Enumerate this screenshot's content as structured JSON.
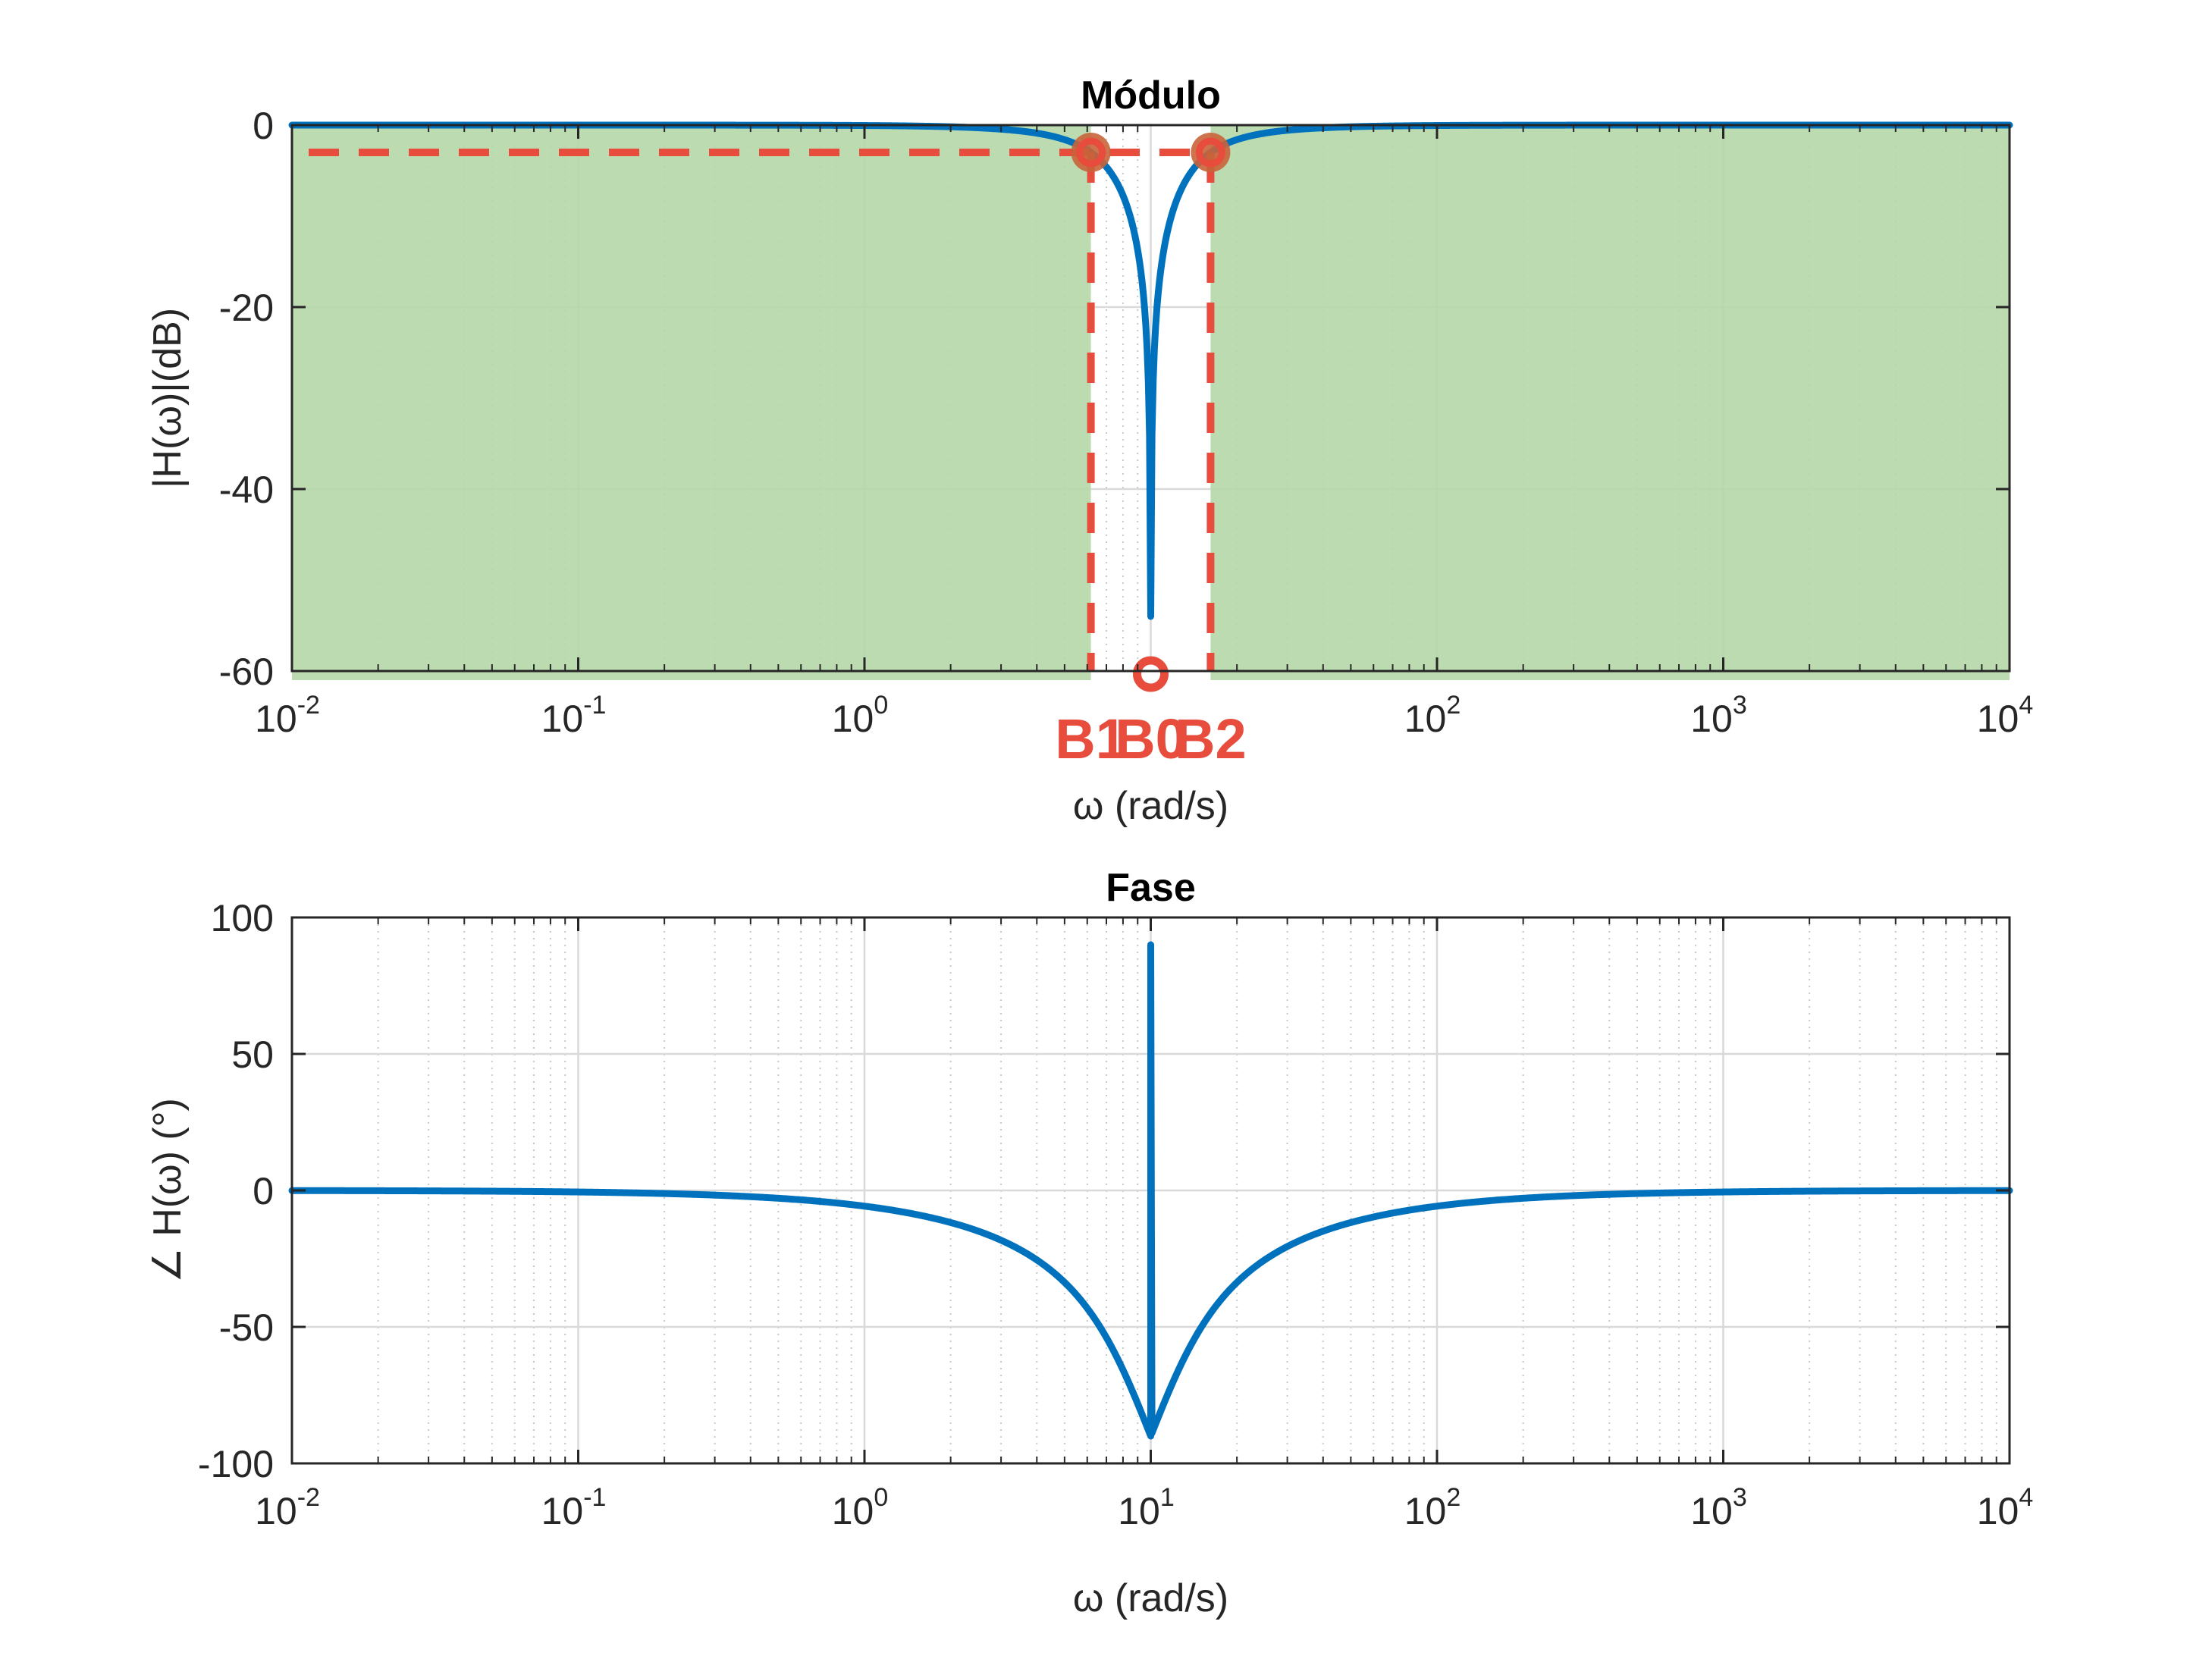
{
  "chart_data": [
    {
      "type": "line",
      "title": "Módulo",
      "xlabel": "ω (rad/s)",
      "ylabel": "|H(ω)|(dB)",
      "xscale": "log",
      "xlim": [
        0.01,
        10000
      ],
      "ylim": [
        -60,
        0
      ],
      "xticks": [
        {
          "value": 0.01,
          "base": "10",
          "exp": "-2"
        },
        {
          "value": 0.1,
          "base": "10",
          "exp": "-1"
        },
        {
          "value": 1,
          "base": "10",
          "exp": "0"
        },
        {
          "value": 100,
          "base": "10",
          "exp": "2"
        },
        {
          "value": 1000,
          "base": "10",
          "exp": "3"
        },
        {
          "value": 10000,
          "base": "10",
          "exp": "4"
        }
      ],
      "yticks": [
        {
          "value": 0,
          "label": "0"
        },
        {
          "value": -20,
          "label": "-20"
        },
        {
          "value": -40,
          "label": "-40"
        },
        {
          "value": -60,
          "label": "-60"
        }
      ],
      "grid": true,
      "series": [
        {
          "color": "#0072bd",
          "type": "notch",
          "center": 10,
          "bandwidth": 10,
          "floor": -54
        }
      ],
      "highlight": {
        "color": "#b6d7a8",
        "passband_low": [
          0.01,
          6.18
        ],
        "passband_high": [
          16.18,
          10000
        ],
        "ylim": [
          -61,
          0
        ]
      },
      "cutoff_level": -3,
      "markers": [
        {
          "label": "B1",
          "x": 6.18,
          "y": -3
        },
        {
          "label": "B0",
          "x": 10,
          "y": -60
        },
        {
          "label": "B2",
          "x": 16.18,
          "y": -3
        }
      ],
      "colors": {
        "line": "#0072bd",
        "cutoff": "#e74c3c",
        "label": "#e74c3c",
        "dot": "#c8643a"
      }
    },
    {
      "type": "line",
      "title": "Fase",
      "xlabel": "ω (rad/s)",
      "ylabel": "∠ H(ω) (°)",
      "xscale": "log",
      "xlim": [
        0.01,
        10000
      ],
      "ylim": [
        -100,
        100
      ],
      "xticks": [
        {
          "value": 0.01,
          "base": "10",
          "exp": "-2"
        },
        {
          "value": 0.1,
          "base": "10",
          "exp": "-1"
        },
        {
          "value": 1,
          "base": "10",
          "exp": "0"
        },
        {
          "value": 10,
          "base": "10",
          "exp": "1"
        },
        {
          "value": 100,
          "base": "10",
          "exp": "2"
        },
        {
          "value": 1000,
          "base": "10",
          "exp": "3"
        },
        {
          "value": 10000,
          "base": "10",
          "exp": "4"
        }
      ],
      "yticks": [
        {
          "value": 100,
          "label": "100"
        },
        {
          "value": 50,
          "label": "50"
        },
        {
          "value": 0,
          "label": "0"
        },
        {
          "value": -50,
          "label": "-50"
        },
        {
          "value": -100,
          "label": "-100"
        }
      ],
      "grid": true,
      "series": [
        {
          "color": "#0072bd",
          "type": "notch-phase",
          "center": 10,
          "bandwidth": 10
        }
      ]
    }
  ]
}
